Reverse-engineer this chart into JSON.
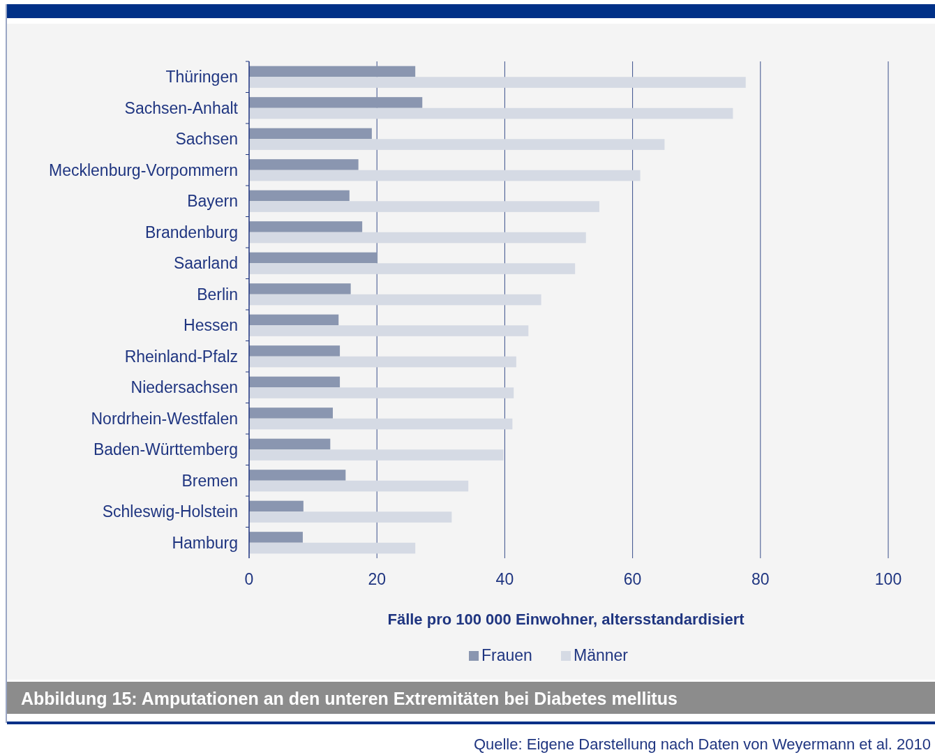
{
  "chart_data": {
    "type": "bar",
    "orientation": "horizontal",
    "title": "Abbildung 15:  Amputationen an den unteren Extremitäten bei Diabetes mellitus",
    "xlabel": "Fälle pro 100 000 Einwohner, altersstandardisiert",
    "annotations": [
      "Quelle: Eigene Darstellung nach Daten von Weyermann et al. 2010"
    ],
    "categories": [
      "Thüringen",
      "Sachsen-Anhalt",
      "Sachsen",
      "Mecklenburg-Vorpommern",
      "Bayern",
      "Brandenburg",
      "Saarland",
      "Berlin",
      "Hessen",
      "Rheinland-Pfalz",
      "Niedersachsen",
      "Nordrhein-Westfalen",
      "Baden-Württemberg",
      "Bremen",
      "Schleswig-Holstein",
      "Hamburg"
    ],
    "series": [
      {
        "name": "Frauen",
        "color": "#8a96b0",
        "values": [
          26.0,
          27.1,
          19.2,
          17.1,
          15.7,
          17.7,
          20.1,
          15.9,
          14.0,
          14.2,
          14.2,
          13.1,
          12.7,
          15.1,
          8.5,
          8.4
        ]
      },
      {
        "name": "Männer",
        "color": "#d5dae4",
        "values": [
          77.7,
          75.7,
          65.0,
          61.2,
          54.8,
          52.7,
          51.0,
          45.7,
          43.7,
          41.8,
          41.4,
          41.2,
          39.8,
          34.3,
          31.7,
          26.0
        ]
      }
    ],
    "xlim": [
      0,
      100
    ],
    "xticks": [
      0,
      20,
      40,
      60,
      80,
      100
    ],
    "grid": "x",
    "legend": "bottom"
  }
}
